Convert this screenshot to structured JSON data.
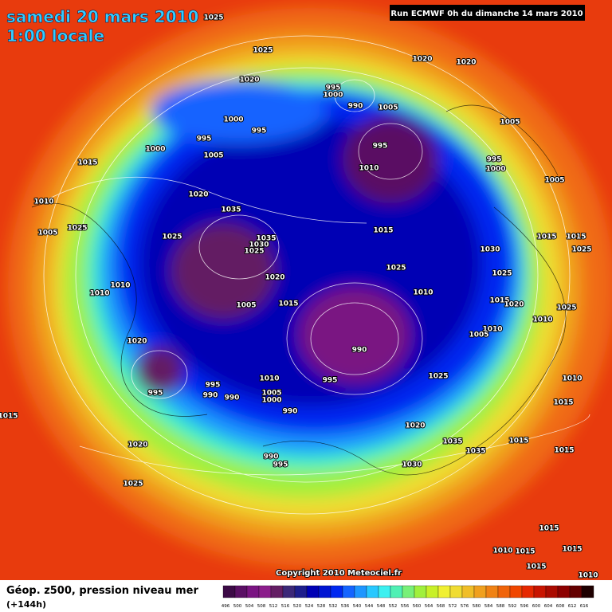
{
  "header": {
    "date": "samedi 20 mars 2010",
    "time": "1:00 locale",
    "run": "Run ECMWF 0h du dimanche 14 mars 2010"
  },
  "footer": {
    "field": "Géop. z500, pression niveau mer",
    "lead": "(+144h)",
    "copyright": "Copyright 2010 Meteociel.fr"
  },
  "isobar_labels": [
    "1025",
    "1025",
    "1020",
    "1020",
    "1020",
    "995",
    "1000",
    "990",
    "1005",
    "1000",
    "995",
    "995",
    "1005",
    "1000",
    "1005",
    "995",
    "1010",
    "995",
    "1000",
    "1015",
    "1020",
    "1005",
    "1010",
    "1035",
    "1025",
    "1005",
    "1025",
    "1035",
    "1030",
    "1025",
    "1015",
    "1015",
    "1015",
    "1025",
    "1030",
    "1025",
    "1020",
    "1025",
    "1010",
    "1010",
    "1010",
    "1015",
    "1005",
    "1015",
    "1020",
    "1025",
    "1010",
    "1010",
    "1005",
    "1020",
    "990",
    "1010",
    "995",
    "1025",
    "995",
    "1010",
    "995",
    "990",
    "990",
    "1005",
    "1000",
    "990",
    "1015",
    "1015",
    "1020",
    "1035",
    "1015",
    "1035",
    "1020",
    "990",
    "995",
    "1030",
    "1015",
    "1025",
    "1015",
    "1010",
    "1015",
    "1015",
    "1015",
    "1010"
  ],
  "colorbar": {
    "labels": [
      496,
      500,
      504,
      508,
      512,
      516,
      520,
      524,
      528,
      532,
      536,
      540,
      544,
      548,
      552,
      556,
      560,
      564,
      568,
      572,
      576,
      580,
      584,
      588,
      592,
      596,
      600,
      604,
      608,
      612,
      616
    ],
    "colors": [
      "#3c0a46",
      "#5a0f64",
      "#7a1482",
      "#8c1e8c",
      "#641e64",
      "#3c2878",
      "#1e1e8c",
      "#0000b4",
      "#0014d2",
      "#0028f0",
      "#1464ff",
      "#1e96ff",
      "#28c8ff",
      "#3cf0f0",
      "#50f0b4",
      "#78f078",
      "#a0f03c",
      "#c8f028",
      "#f0f032",
      "#f0dc32",
      "#f0be28",
      "#f0a01e",
      "#f08214",
      "#f0640a",
      "#f04600",
      "#e62800",
      "#c81400",
      "#aa0a00",
      "#8c0000",
      "#640000",
      "#1e0000"
    ]
  }
}
